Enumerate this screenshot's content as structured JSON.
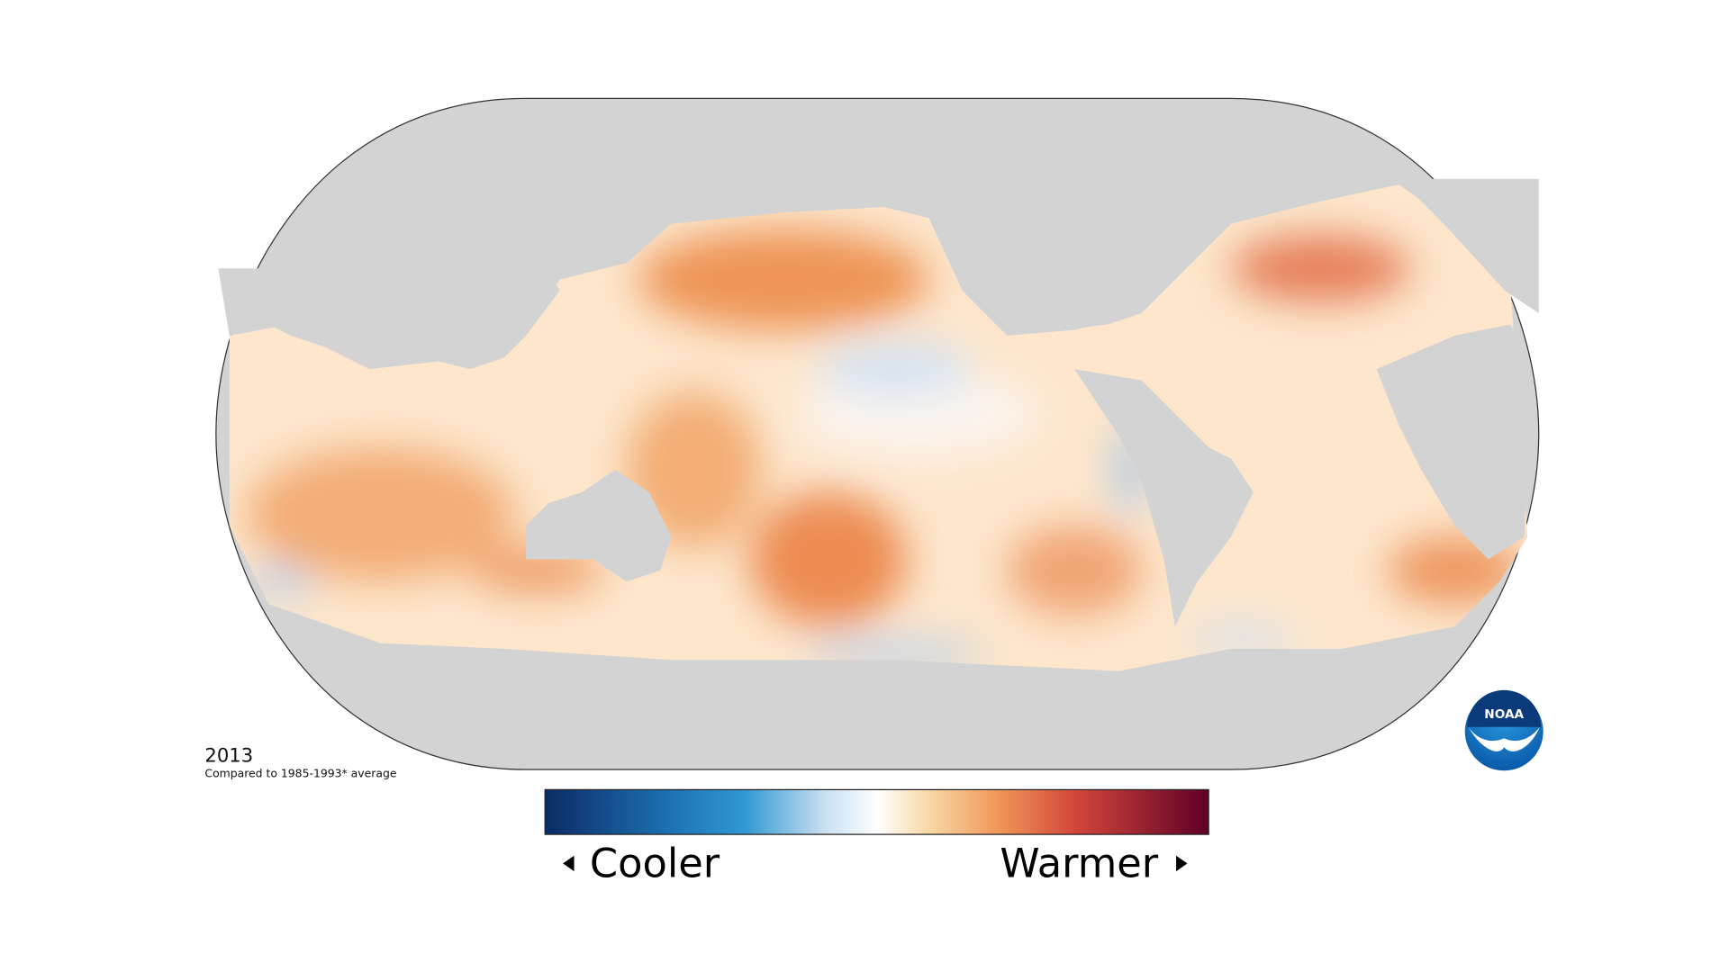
{
  "map": {
    "year": "2013",
    "subtitle": "Compared to 1985-1993* average"
  },
  "legend": {
    "low": "Cooler",
    "high": "Warmer"
  },
  "logo": "NOAA"
}
